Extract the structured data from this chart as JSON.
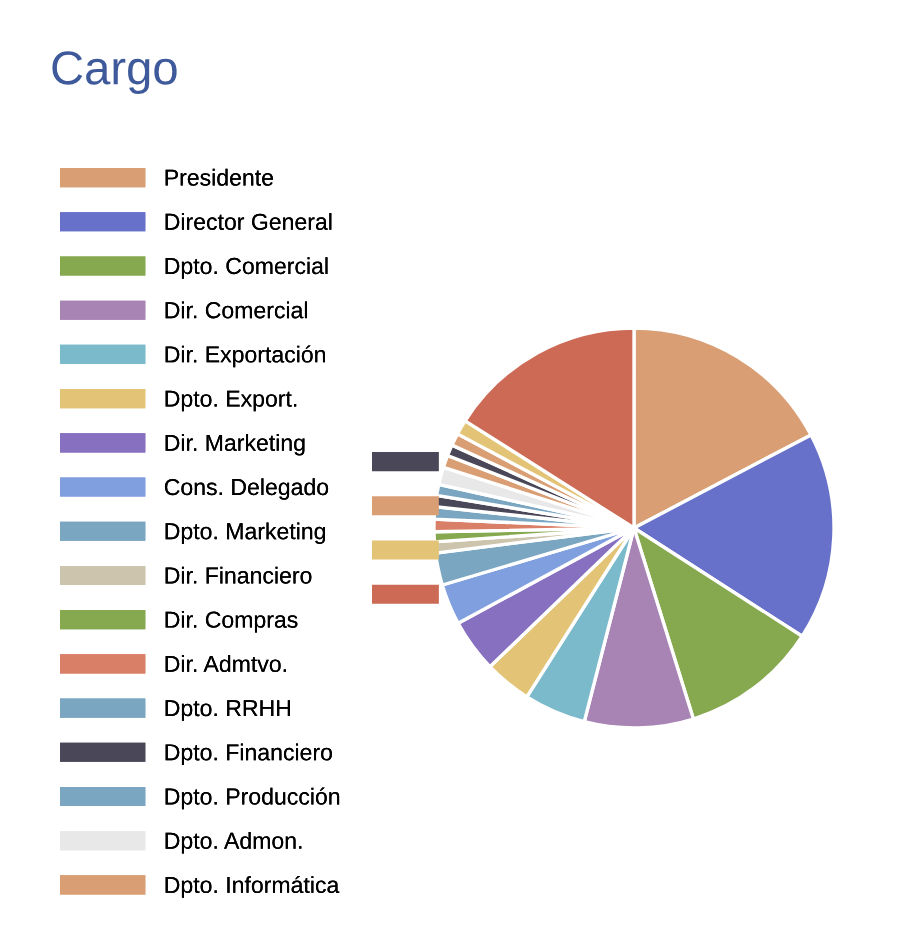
{
  "chart_data": {
    "type": "pie",
    "title": "Cargo",
    "legend": "left",
    "categories": [
      "Presidente",
      "Director General",
      "Dpto. Comercial",
      "Dir. Comercial",
      "Dir. Exportación",
      "Dpto. Export.",
      "Dir. Marketing",
      "Cons. Delegado",
      "Dpto. Marketing",
      "Dir. Financiero",
      "Dir. Compras",
      "Dir. Admtvo.",
      "Dpto. RRHH",
      "Dpto. Financiero",
      "Dpto. Producción",
      "Dpto. Admon.",
      "Dpto. Informática",
      null,
      null,
      null,
      null
    ],
    "values": [
      17.3,
      16.8,
      11.1,
      8.8,
      5.0,
      3.8,
      4.3,
      3.3,
      2.6,
      0.9,
      0.8,
      1.0,
      1.0,
      0.9,
      0.9,
      1.4,
      1.0,
      0.9,
      1.0,
      1.2,
      16.0
    ],
    "colors": [
      "#d99e73",
      "#6771c9",
      "#86a84e",
      "#a884b5",
      "#7bbacb",
      "#e3c476",
      "#8670bf",
      "#7f9fde",
      "#7aa6c2",
      "#ccc4ad",
      "#86a84e",
      "#d97f68",
      "#7aa6c2",
      "#4a4858",
      "#7aa6c2",
      "#e8e8e8",
      "#d99e73",
      "#4a4858",
      "#d99e73",
      "#e3c476",
      "#cc6a55"
    ]
  }
}
